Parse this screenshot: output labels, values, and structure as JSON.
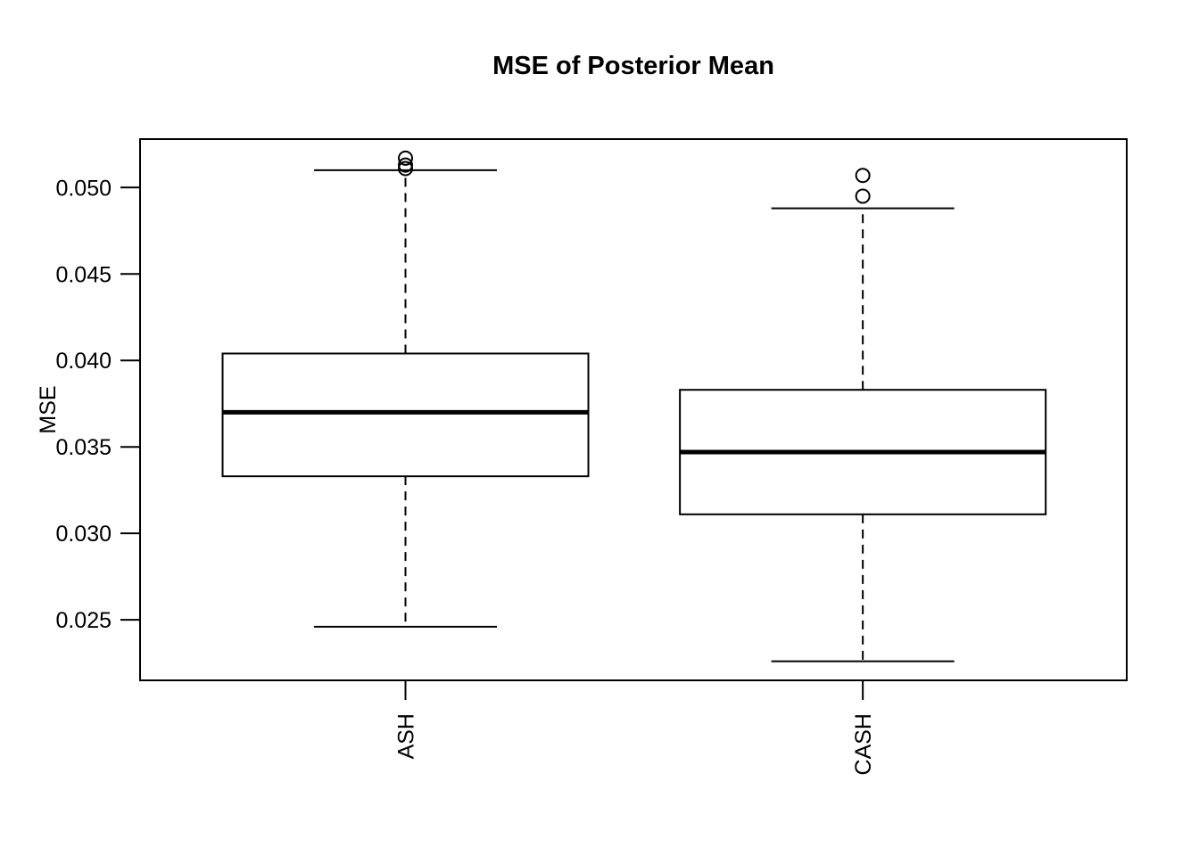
{
  "chart_data": {
    "type": "boxplot",
    "title": "MSE of Posterior Mean",
    "ylabel": "MSE",
    "xlabel": "",
    "categories": [
      "ASH",
      "CASH"
    ],
    "ytick_labels": [
      "0.025",
      "0.030",
      "0.035",
      "0.040",
      "0.045",
      "0.050"
    ],
    "yticks": [
      0.025,
      0.03,
      0.035,
      0.04,
      0.045,
      0.05
    ],
    "ylim": [
      0.0215,
      0.0528
    ],
    "grid": false,
    "legend": "none",
    "series": [
      {
        "name": "ASH",
        "lower_whisker": 0.0246,
        "q1": 0.0333,
        "median": 0.037,
        "q3": 0.0404,
        "upper_whisker": 0.051,
        "outliers": [
          0.0511,
          0.0513,
          0.0517
        ]
      },
      {
        "name": "CASH",
        "lower_whisker": 0.0226,
        "q1": 0.0311,
        "median": 0.0347,
        "q3": 0.0383,
        "upper_whisker": 0.0488,
        "outliers": [
          0.0495,
          0.0507
        ]
      }
    ],
    "colors": {
      "stroke": "#000000",
      "background": "#ffffff",
      "box_fill": "#ffffff"
    }
  }
}
